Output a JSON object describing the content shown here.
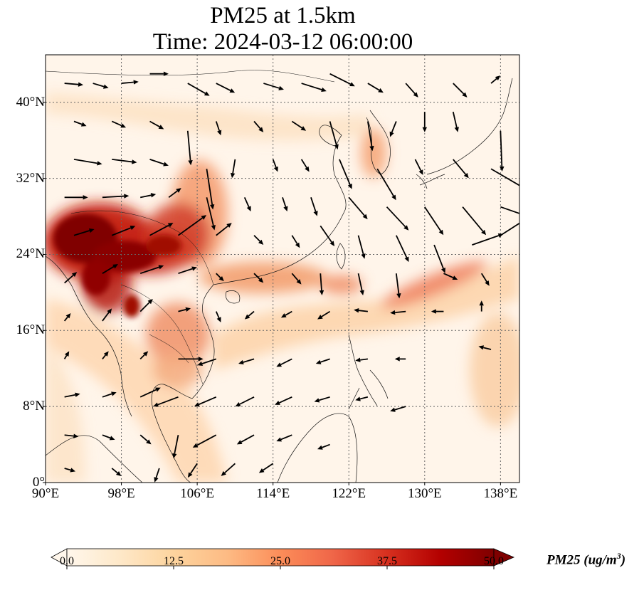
{
  "title": {
    "line1": "PM25 at 1.5km",
    "line2": "Time: 2024-03-12 06:00:00"
  },
  "axes": {
    "lon_range": [
      90,
      140
    ],
    "lat_range": [
      0,
      45
    ],
    "x_ticks": [
      {
        "value": 90,
        "label": "90°E"
      },
      {
        "value": 98,
        "label": "98°E"
      },
      {
        "value": 106,
        "label": "106°E"
      },
      {
        "value": 114,
        "label": "114°E"
      },
      {
        "value": 122,
        "label": "122°E"
      },
      {
        "value": 130,
        "label": "130°E"
      },
      {
        "value": 138,
        "label": "138°E"
      }
    ],
    "y_ticks": [
      {
        "value": 0,
        "label": "0°"
      },
      {
        "value": 8,
        "label": "8°N"
      },
      {
        "value": 16,
        "label": "16°N"
      },
      {
        "value": 24,
        "label": "24°N"
      },
      {
        "value": 32,
        "label": "32°N"
      },
      {
        "value": 40,
        "label": "40°N"
      }
    ],
    "gridlines": true
  },
  "colorbar": {
    "colormap": "OrRd",
    "label_main": "PM25 (ug/m",
    "label_sup": "3",
    "label_end": ")",
    "range": [
      0,
      50
    ],
    "extend": "both",
    "ticks": [
      {
        "value": 0,
        "label": "0.0"
      },
      {
        "value": 12.5,
        "label": "12.5"
      },
      {
        "value": 25,
        "label": "25.0"
      },
      {
        "value": 37.5,
        "label": "37.5"
      },
      {
        "value": 50,
        "label": "50.0"
      }
    ],
    "stops": [
      "#fff7ec",
      "#fee8c8",
      "#fdd49e",
      "#fdbb84",
      "#fc8d59",
      "#ef6548",
      "#d7301f",
      "#b30000",
      "#7f0000"
    ]
  },
  "chart_data": {
    "type": "heatmap",
    "variable": "PM25",
    "units": "ug/m3",
    "hotspots": [
      {
        "lon": 94,
        "lat": 25.5,
        "value": 50
      },
      {
        "lon": 98,
        "lat": 24,
        "value": 50
      },
      {
        "lon": 102,
        "lat": 24,
        "value": 44
      },
      {
        "lon": 97,
        "lat": 20,
        "value": 40
      },
      {
        "lon": 106,
        "lat": 25,
        "value": 32
      },
      {
        "lon": 107,
        "lat": 28,
        "value": 26
      },
      {
        "lon": 103,
        "lat": 15,
        "value": 22
      },
      {
        "lon": 112,
        "lat": 21,
        "value": 22
      },
      {
        "lon": 118,
        "lat": 20,
        "value": 20
      },
      {
        "lon": 127,
        "lat": 19,
        "value": 22
      },
      {
        "lon": 134,
        "lat": 22.5,
        "value": 28
      },
      {
        "lon": 139,
        "lat": 22,
        "value": 24
      },
      {
        "lon": 126,
        "lat": 35,
        "value": 20
      },
      {
        "lon": 93,
        "lat": 40,
        "value": 18
      },
      {
        "lon": 138,
        "lat": 11,
        "value": 16
      }
    ],
    "wind_vectors": [
      {
        "lon": 92,
        "lat": 42,
        "u": 1.2,
        "v": -0.1
      },
      {
        "lon": 95,
        "lat": 42,
        "u": 1.0,
        "v": -0.3
      },
      {
        "lon": 98,
        "lat": 42,
        "u": 1.1,
        "v": 0.1
      },
      {
        "lon": 101,
        "lat": 43,
        "u": 1.2,
        "v": 0.0
      },
      {
        "lon": 105,
        "lat": 42,
        "u": 1.4,
        "v": -0.8
      },
      {
        "lon": 108,
        "lat": 42,
        "u": 1.2,
        "v": -0.6
      },
      {
        "lon": 113,
        "lat": 42,
        "u": 1.3,
        "v": -0.4
      },
      {
        "lon": 117,
        "lat": 42,
        "u": 1.6,
        "v": -0.5
      },
      {
        "lon": 120,
        "lat": 43,
        "u": 1.6,
        "v": -0.8
      },
      {
        "lon": 124,
        "lat": 42,
        "u": 1.0,
        "v": -0.6
      },
      {
        "lon": 128,
        "lat": 42,
        "u": 0.8,
        "v": -0.9
      },
      {
        "lon": 133,
        "lat": 42,
        "u": 0.9,
        "v": -0.9
      },
      {
        "lon": 137,
        "lat": 42,
        "u": 0.6,
        "v": 0.5
      },
      {
        "lon": 93,
        "lat": 38,
        "u": 0.8,
        "v": -0.3
      },
      {
        "lon": 97,
        "lat": 38,
        "u": 0.9,
        "v": -0.4
      },
      {
        "lon": 101,
        "lat": 38,
        "u": 0.9,
        "v": -0.5
      },
      {
        "lon": 105,
        "lat": 37,
        "u": 0.2,
        "v": -2.2
      },
      {
        "lon": 108,
        "lat": 38,
        "u": 0.3,
        "v": -0.9
      },
      {
        "lon": 112,
        "lat": 38,
        "u": 0.6,
        "v": -0.7
      },
      {
        "lon": 116,
        "lat": 38,
        "u": 0.9,
        "v": -0.6
      },
      {
        "lon": 120,
        "lat": 38,
        "u": 0.5,
        "v": -1.8
      },
      {
        "lon": 124,
        "lat": 38,
        "u": 0.3,
        "v": -1.9
      },
      {
        "lon": 127,
        "lat": 38,
        "u": -0.4,
        "v": -1.0
      },
      {
        "lon": 130,
        "lat": 39,
        "u": 0.0,
        "v": -1.3
      },
      {
        "lon": 133,
        "lat": 39,
        "u": 0.3,
        "v": -1.3
      },
      {
        "lon": 138,
        "lat": 37,
        "u": 0.1,
        "v": -2.6
      },
      {
        "lon": 93,
        "lat": 34,
        "u": 1.8,
        "v": -0.3
      },
      {
        "lon": 97,
        "lat": 34,
        "u": 1.6,
        "v": -0.2
      },
      {
        "lon": 101,
        "lat": 34,
        "u": 1.2,
        "v": -0.4
      },
      {
        "lon": 107,
        "lat": 33,
        "u": 0.4,
        "v": -2.6
      },
      {
        "lon": 110,
        "lat": 34,
        "u": -0.2,
        "v": -1.2
      },
      {
        "lon": 114,
        "lat": 34,
        "u": 0.3,
        "v": -0.8
      },
      {
        "lon": 117,
        "lat": 34,
        "u": 0.5,
        "v": -0.8
      },
      {
        "lon": 121,
        "lat": 34,
        "u": 0.8,
        "v": -1.9
      },
      {
        "lon": 125,
        "lat": 33,
        "u": 1.2,
        "v": -2.0
      },
      {
        "lon": 129,
        "lat": 34,
        "u": 0.5,
        "v": -1.0
      },
      {
        "lon": 133,
        "lat": 34,
        "u": 1.0,
        "v": -1.2
      },
      {
        "lon": 137,
        "lat": 33,
        "u": 2.4,
        "v": -1.4
      },
      {
        "lon": 92,
        "lat": 30,
        "u": 1.5,
        "v": 0.0
      },
      {
        "lon": 96,
        "lat": 30,
        "u": 1.7,
        "v": 0.1
      },
      {
        "lon": 100,
        "lat": 30,
        "u": 1.0,
        "v": 0.2
      },
      {
        "lon": 103,
        "lat": 30,
        "u": 0.8,
        "v": 0.6
      },
      {
        "lon": 107,
        "lat": 30,
        "u": 0.5,
        "v": -2.1
      },
      {
        "lon": 111,
        "lat": 30,
        "u": 0.4,
        "v": -0.9
      },
      {
        "lon": 115,
        "lat": 30,
        "u": 0.3,
        "v": -0.9
      },
      {
        "lon": 118,
        "lat": 30,
        "u": 0.4,
        "v": -1.2
      },
      {
        "lon": 122,
        "lat": 30,
        "u": 1.2,
        "v": -1.4
      },
      {
        "lon": 126,
        "lat": 29,
        "u": 1.4,
        "v": -1.5
      },
      {
        "lon": 130,
        "lat": 29,
        "u": 1.2,
        "v": -1.8
      },
      {
        "lon": 134,
        "lat": 29,
        "u": 1.5,
        "v": -1.8
      },
      {
        "lon": 138,
        "lat": 29,
        "u": 2.6,
        "v": -0.9
      },
      {
        "lon": 93,
        "lat": 26,
        "u": 1.3,
        "v": 0.4
      },
      {
        "lon": 97,
        "lat": 26,
        "u": 1.5,
        "v": 0.6
      },
      {
        "lon": 101,
        "lat": 26,
        "u": 1.5,
        "v": 0.8
      },
      {
        "lon": 104,
        "lat": 26,
        "u": 1.8,
        "v": 1.3
      },
      {
        "lon": 108,
        "lat": 26,
        "u": 1.0,
        "v": 0.8
      },
      {
        "lon": 112,
        "lat": 26,
        "u": 0.6,
        "v": -0.6
      },
      {
        "lon": 116,
        "lat": 26,
        "u": 0.5,
        "v": -0.8
      },
      {
        "lon": 119,
        "lat": 27,
        "u": 0.9,
        "v": -1.3
      },
      {
        "lon": 123,
        "lat": 26,
        "u": 0.4,
        "v": -1.5
      },
      {
        "lon": 127,
        "lat": 26,
        "u": 0.8,
        "v": -1.7
      },
      {
        "lon": 131,
        "lat": 25,
        "u": 0.7,
        "v": -1.8
      },
      {
        "lon": 135,
        "lat": 25,
        "u": 2.0,
        "v": 0.7
      },
      {
        "lon": 138,
        "lat": 26,
        "u": 2.5,
        "v": 1.6
      },
      {
        "lon": 92,
        "lat": 21,
        "u": 0.8,
        "v": 0.7
      },
      {
        "lon": 96,
        "lat": 22,
        "u": 1.0,
        "v": 0.6
      },
      {
        "lon": 100,
        "lat": 22,
        "u": 1.5,
        "v": 0.5
      },
      {
        "lon": 104,
        "lat": 22,
        "u": 1.2,
        "v": 0.4
      },
      {
        "lon": 108,
        "lat": 22,
        "u": 0.5,
        "v": -0.5
      },
      {
        "lon": 112,
        "lat": 22,
        "u": 0.6,
        "v": -0.6
      },
      {
        "lon": 116,
        "lat": 22,
        "u": 0.6,
        "v": -0.7
      },
      {
        "lon": 119,
        "lat": 22,
        "u": 0.1,
        "v": -1.4
      },
      {
        "lon": 123,
        "lat": 22,
        "u": 0.3,
        "v": -1.4
      },
      {
        "lon": 127,
        "lat": 22,
        "u": 0.2,
        "v": -1.6
      },
      {
        "lon": 132,
        "lat": 22,
        "u": 0.9,
        "v": -0.4
      },
      {
        "lon": 136,
        "lat": 22,
        "u": 0.5,
        "v": -0.8
      },
      {
        "lon": 92,
        "lat": 17,
        "u": 0.4,
        "v": 0.5
      },
      {
        "lon": 96,
        "lat": 17,
        "u": 0.6,
        "v": 0.8
      },
      {
        "lon": 100,
        "lat": 18,
        "u": 0.8,
        "v": 0.8
      },
      {
        "lon": 104,
        "lat": 18,
        "u": 0.8,
        "v": 0.2
      },
      {
        "lon": 108,
        "lat": 18,
        "u": 0.3,
        "v": -0.7
      },
      {
        "lon": 112,
        "lat": 18,
        "u": -0.6,
        "v": -0.5
      },
      {
        "lon": 116,
        "lat": 18,
        "u": -0.7,
        "v": -0.4
      },
      {
        "lon": 120,
        "lat": 18,
        "u": -0.8,
        "v": -0.5
      },
      {
        "lon": 124,
        "lat": 18,
        "u": -0.9,
        "v": 0.1
      },
      {
        "lon": 128,
        "lat": 18,
        "u": -1.0,
        "v": -0.1
      },
      {
        "lon": 132,
        "lat": 18,
        "u": -0.8,
        "v": 0.0
      },
      {
        "lon": 136,
        "lat": 18,
        "u": 0.0,
        "v": 0.7
      },
      {
        "lon": 92,
        "lat": 13,
        "u": 0.3,
        "v": 0.5
      },
      {
        "lon": 96,
        "lat": 13,
        "u": 0.4,
        "v": 0.5
      },
      {
        "lon": 100,
        "lat": 13,
        "u": 0.5,
        "v": 0.5
      },
      {
        "lon": 104,
        "lat": 13,
        "u": 1.6,
        "v": 0.0
      },
      {
        "lon": 108,
        "lat": 13,
        "u": -1.2,
        "v": -0.4
      },
      {
        "lon": 112,
        "lat": 13,
        "u": -1.0,
        "v": -0.3
      },
      {
        "lon": 116,
        "lat": 13,
        "u": -1.0,
        "v": -0.5
      },
      {
        "lon": 120,
        "lat": 13,
        "u": -0.9,
        "v": -0.3
      },
      {
        "lon": 124,
        "lat": 13,
        "u": -0.8,
        "v": -0.1
      },
      {
        "lon": 128,
        "lat": 13,
        "u": -0.7,
        "v": 0.0
      },
      {
        "lon": 137,
        "lat": 14,
        "u": -0.8,
        "v": 0.2
      },
      {
        "lon": 92,
        "lat": 9,
        "u": 1.0,
        "v": 0.2
      },
      {
        "lon": 96,
        "lat": 9,
        "u": 0.9,
        "v": 0.3
      },
      {
        "lon": 100,
        "lat": 9,
        "u": 1.3,
        "v": 0.6
      },
      {
        "lon": 104,
        "lat": 9,
        "u": -1.6,
        "v": -0.6
      },
      {
        "lon": 108,
        "lat": 9,
        "u": -1.4,
        "v": -0.6
      },
      {
        "lon": 112,
        "lat": 9,
        "u": -1.2,
        "v": -0.6
      },
      {
        "lon": 116,
        "lat": 9,
        "u": -1.1,
        "v": -0.5
      },
      {
        "lon": 120,
        "lat": 9,
        "u": -1.0,
        "v": -0.3
      },
      {
        "lon": 124,
        "lat": 9,
        "u": -0.8,
        "v": -0.2
      },
      {
        "lon": 128,
        "lat": 8,
        "u": -1.0,
        "v": -0.3
      },
      {
        "lon": 92,
        "lat": 5,
        "u": 0.9,
        "v": -0.1
      },
      {
        "lon": 96,
        "lat": 5,
        "u": 0.8,
        "v": -0.3
      },
      {
        "lon": 100,
        "lat": 5,
        "u": 0.7,
        "v": -0.6
      },
      {
        "lon": 104,
        "lat": 5,
        "u": -0.3,
        "v": -1.5
      },
      {
        "lon": 108,
        "lat": 5,
        "u": -1.5,
        "v": -0.8
      },
      {
        "lon": 112,
        "lat": 5,
        "u": -1.1,
        "v": -0.6
      },
      {
        "lon": 116,
        "lat": 5,
        "u": -1.0,
        "v": -0.4
      },
      {
        "lon": 120,
        "lat": 4,
        "u": -0.8,
        "v": -0.3
      },
      {
        "lon": 92,
        "lat": 1.5,
        "u": 0.7,
        "v": -0.2
      },
      {
        "lon": 97,
        "lat": 1.5,
        "u": 0.6,
        "v": -0.5
      },
      {
        "lon": 102,
        "lat": 1.5,
        "u": -0.3,
        "v": -0.9
      },
      {
        "lon": 106,
        "lat": 2,
        "u": -0.6,
        "v": -0.9
      },
      {
        "lon": 110,
        "lat": 2,
        "u": -0.9,
        "v": -0.8
      },
      {
        "lon": 114,
        "lat": 2,
        "u": -0.9,
        "v": -0.6
      }
    ]
  }
}
